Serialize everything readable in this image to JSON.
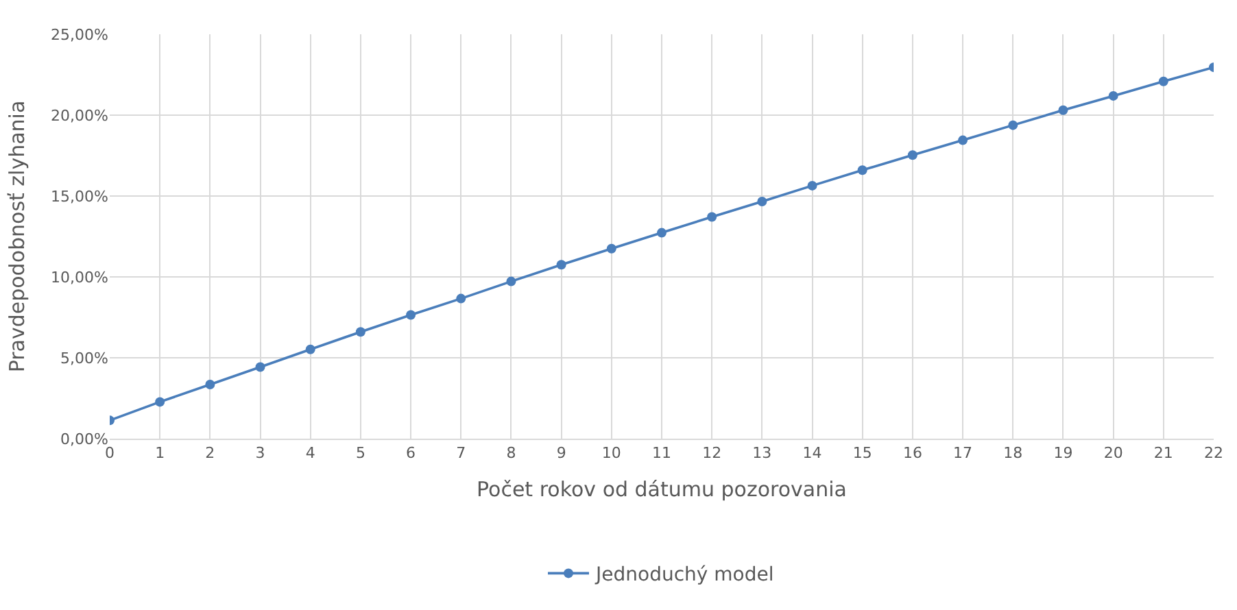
{
  "chart_data": {
    "type": "line",
    "xlabel": "Počet rokov od dátumu pozorovania",
    "ylabel": "Pravdepodobnosť zlyhania",
    "x": [
      0,
      1,
      2,
      3,
      4,
      5,
      6,
      7,
      8,
      9,
      10,
      11,
      12,
      13,
      14,
      15,
      16,
      17,
      18,
      19,
      20,
      21,
      22
    ],
    "series": [
      {
        "name": "Jednoduchý model",
        "color": "#4a7ebb",
        "values": [
          1.13,
          2.27,
          3.35,
          4.43,
          5.52,
          6.6,
          7.65,
          8.66,
          9.72,
          10.75,
          11.75,
          12.73,
          13.71,
          14.66,
          15.64,
          16.6,
          17.53,
          18.45,
          19.38,
          20.31,
          21.19,
          22.09,
          22.96
        ]
      }
    ],
    "xlim": [
      0,
      22
    ],
    "xticks": [
      0,
      1,
      2,
      3,
      4,
      5,
      6,
      7,
      8,
      9,
      10,
      11,
      12,
      13,
      14,
      15,
      16,
      17,
      18,
      19,
      20,
      21,
      22
    ],
    "ylim": [
      0,
      25
    ],
    "yticks": [
      {
        "value": 0,
        "label": "0,00%"
      },
      {
        "value": 5,
        "label": "5,00%"
      },
      {
        "value": 10,
        "label": "10,00%"
      },
      {
        "value": 15,
        "label": "15,00%"
      },
      {
        "value": 20,
        "label": "20,00%"
      },
      {
        "value": 25,
        "label": "25,00%"
      }
    ],
    "grid": true,
    "legend": "bottom",
    "marker": "circle",
    "line_style": "solid"
  }
}
